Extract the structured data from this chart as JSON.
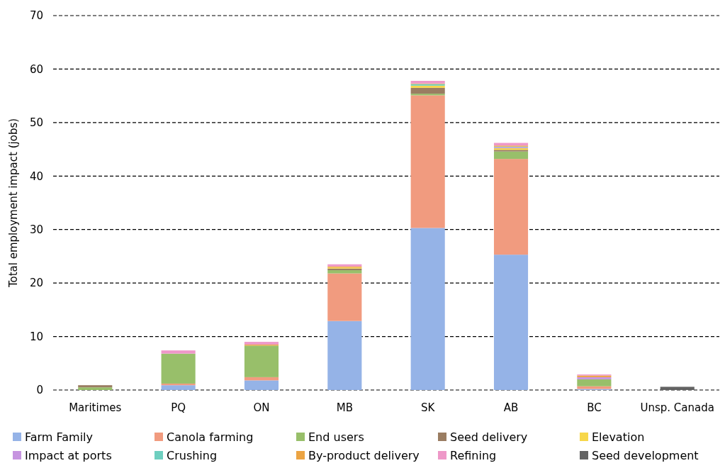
{
  "chart_data": {
    "type": "bar",
    "stacked": true,
    "ylabel": "Total employment impact (jobs)",
    "categories": [
      "Maritimes",
      "PQ",
      "ON",
      "MB",
      "SK",
      "AB",
      "BC",
      "Unsp. Canada"
    ],
    "series": [
      {
        "name": "Farm Family",
        "color": "#95b3e7",
        "values": [
          0,
          0.9,
          1.8,
          12.9,
          30.3,
          25.3,
          0.2,
          0
        ]
      },
      {
        "name": "Canola farming",
        "color": "#f19b7f",
        "values": [
          0,
          0.3,
          0.6,
          8.9,
          24.8,
          17.9,
          0.5,
          0
        ]
      },
      {
        "name": "End users",
        "color": "#98bf6a",
        "values": [
          0.5,
          5.6,
          5.9,
          0.6,
          0.3,
          1.4,
          1.3,
          0
        ]
      },
      {
        "name": "Seed delivery",
        "color": "#9a7d62",
        "values": [
          0.4,
          0,
          0,
          0.3,
          1.1,
          0.3,
          0,
          0
        ]
      },
      {
        "name": "Elevation",
        "color": "#f7d74a",
        "values": [
          0,
          0,
          0,
          0.2,
          0.4,
          0.3,
          0,
          0
        ]
      },
      {
        "name": "Impact at ports",
        "color": "#c694e0",
        "values": [
          0,
          0,
          0,
          0,
          0,
          0.2,
          0.4,
          0
        ]
      },
      {
        "name": "Crushing",
        "color": "#6ecfbf",
        "values": [
          0,
          0,
          0,
          0,
          0.3,
          0.1,
          0,
          0
        ]
      },
      {
        "name": "By-product delivery",
        "color": "#eca443",
        "values": [
          0,
          0,
          0.2,
          0.2,
          0.1,
          0.2,
          0.3,
          0
        ]
      },
      {
        "name": "Refining",
        "color": "#ee98c8",
        "values": [
          0,
          0.6,
          0.5,
          0.4,
          0.5,
          0.5,
          0.2,
          0
        ]
      },
      {
        "name": "Seed development",
        "color": "#636363",
        "values": [
          0,
          0,
          0,
          0,
          0,
          0,
          0,
          0.6
        ]
      }
    ],
    "ylim": [
      0,
      70
    ],
    "yticks": [
      0,
      10,
      20,
      30,
      40,
      50,
      60,
      70
    ],
    "grid": "y",
    "legend": "bottom"
  }
}
